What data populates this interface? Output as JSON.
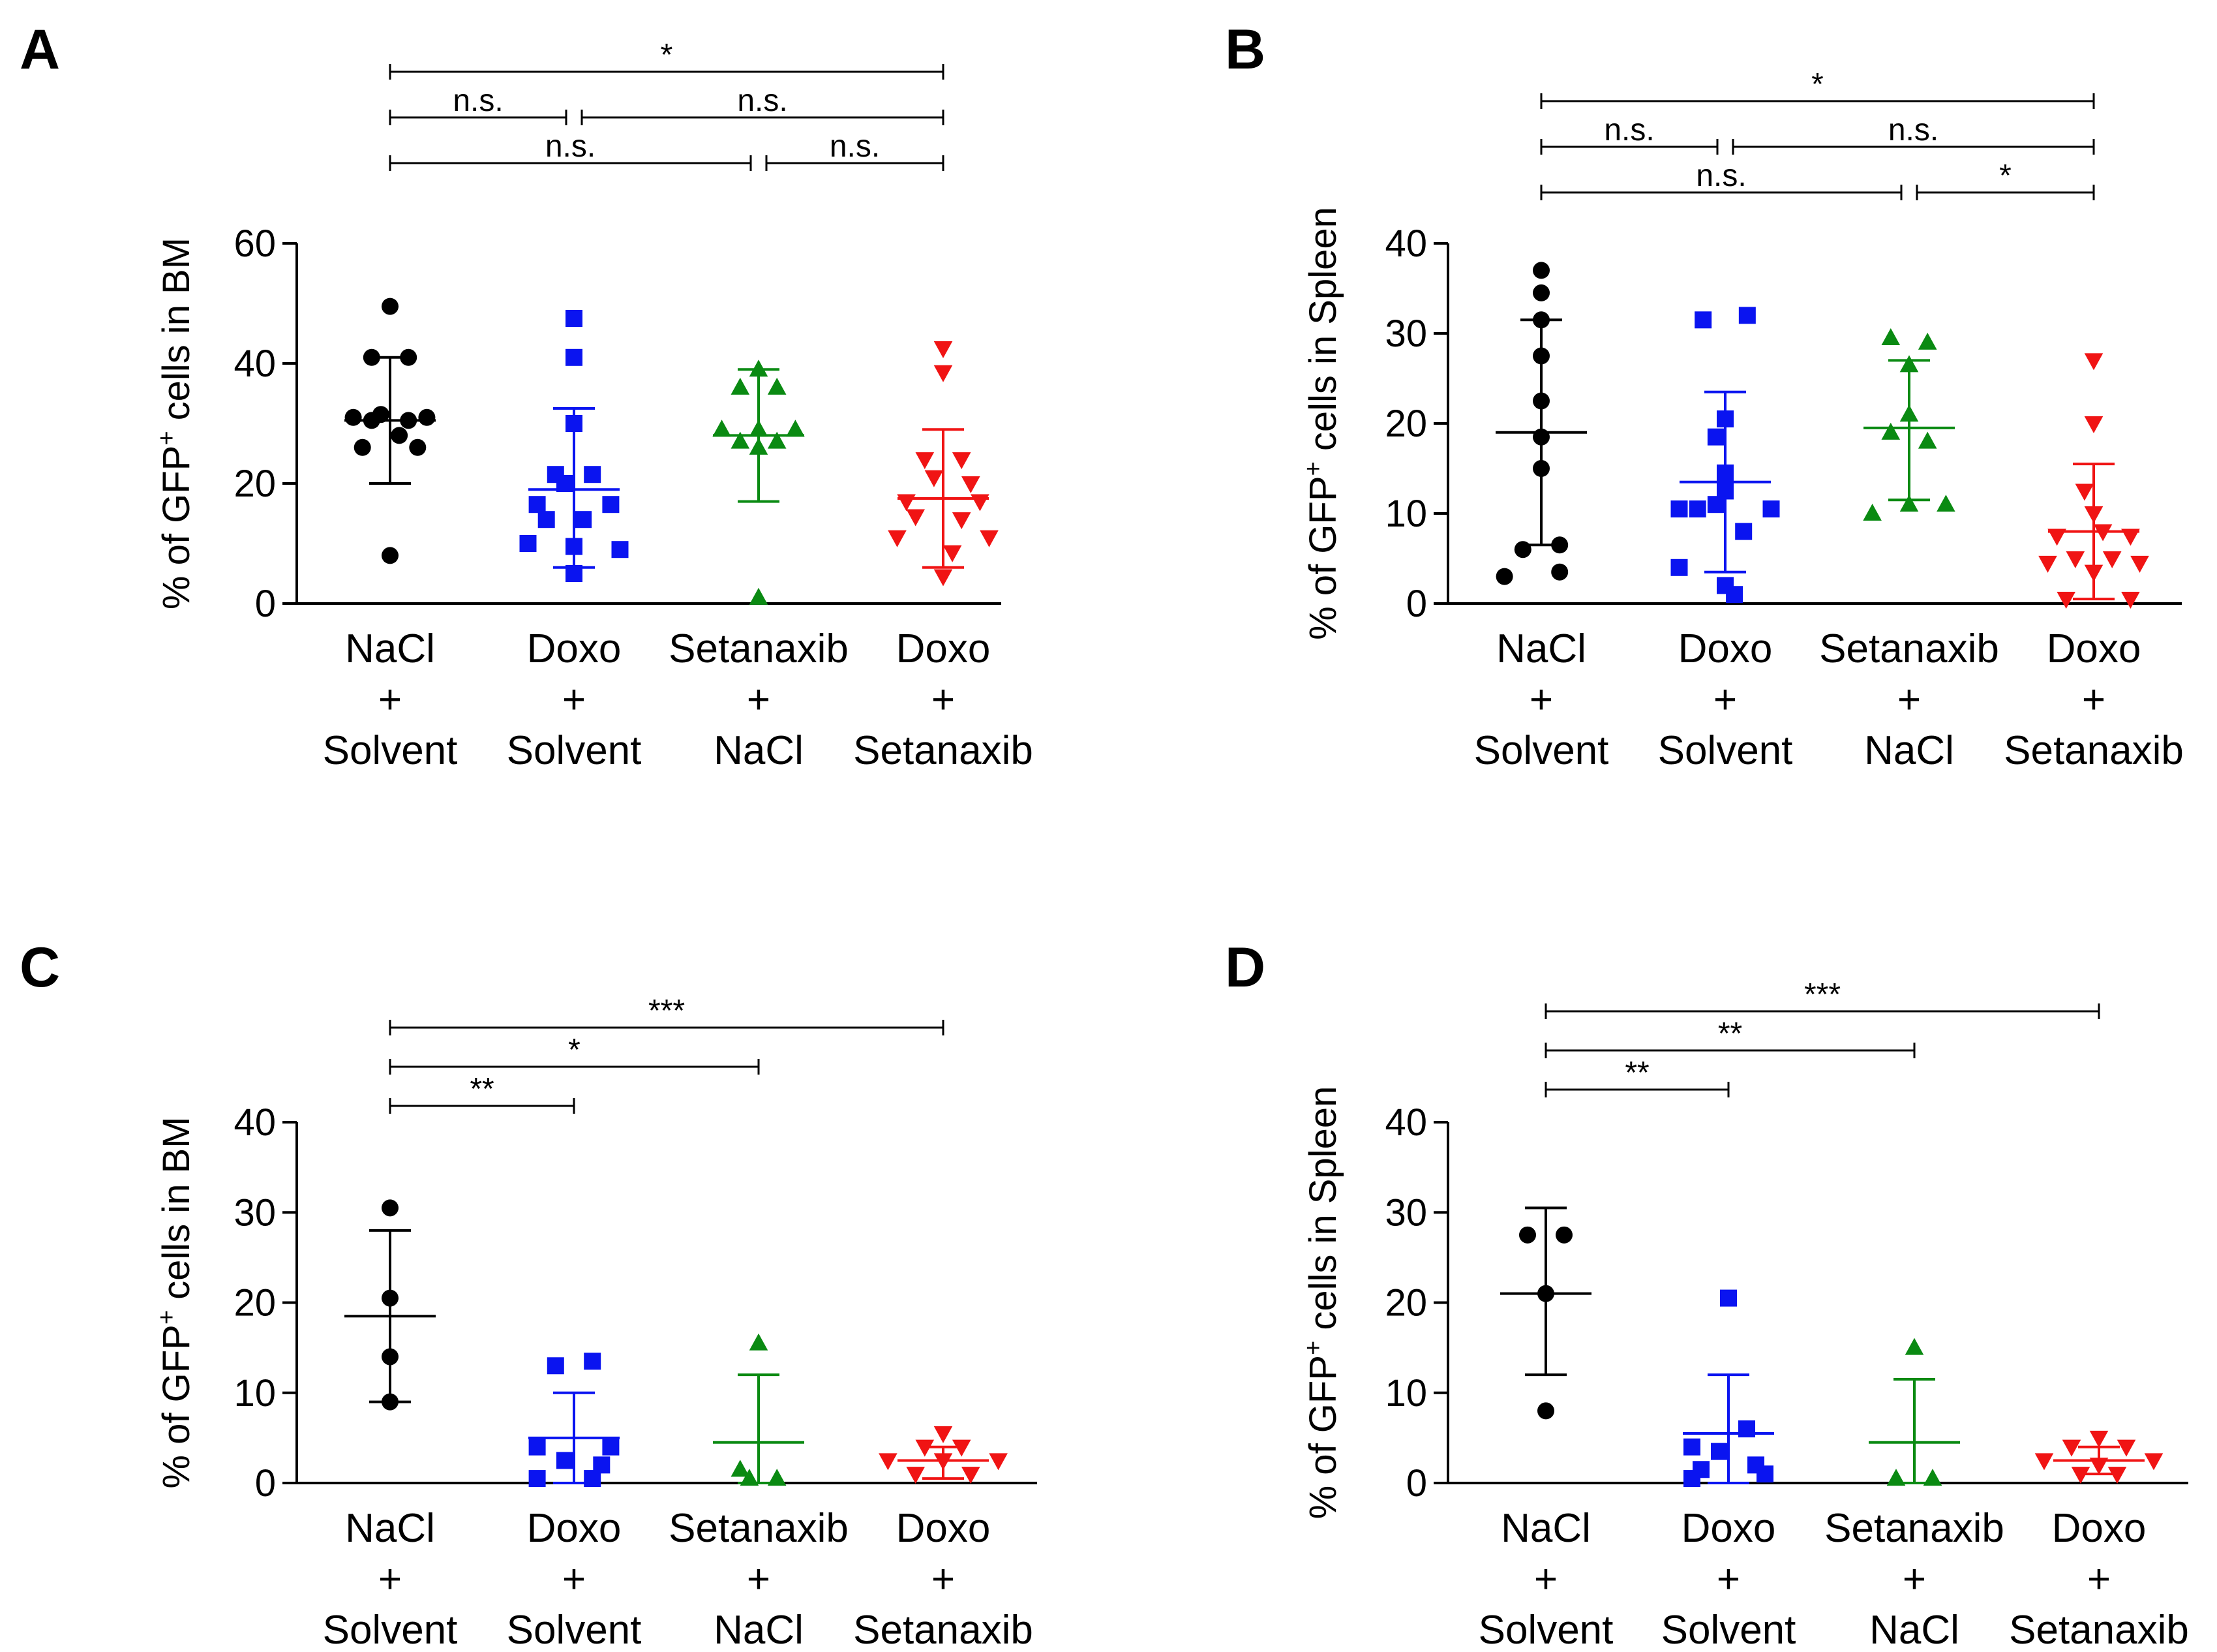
{
  "colors": {
    "NaCl + Solvent": "#000000",
    "Doxo + Solvent": "#0a14f0",
    "Setanaxib + NaCl": "#0a8a12",
    "Doxo + Setanaxib": "#f01414"
  },
  "chart_data": [
    {
      "panel": "A",
      "type": "scatter",
      "ylabel_parts": [
        "% of GFP",
        "+",
        " cells in BM"
      ],
      "ylim": [
        0,
        60
      ],
      "yticks": [
        0,
        20,
        40,
        60
      ],
      "categories": [
        {
          "line1": "NaCl",
          "line2": "+",
          "line3": "Solvent"
        },
        {
          "line1": "Doxo",
          "line2": "+",
          "line3": "Solvent"
        },
        {
          "line1": "Setanaxib",
          "line2": "+",
          "line3": "NaCl"
        },
        {
          "line1": "Doxo",
          "line2": "+",
          "line3": "Setanaxib"
        }
      ],
      "series": [
        {
          "name": "NaCl + Solvent",
          "marker": "circle",
          "mean": 30.5,
          "sd_low": 20,
          "sd_high": 41,
          "points": [
            [
              0,
              49.5
            ],
            [
              -0.1,
              30.5
            ],
            [
              0.1,
              30.5
            ],
            [
              -0.2,
              31
            ],
            [
              0.2,
              31
            ],
            [
              -0.05,
              31.5
            ],
            [
              0.05,
              28
            ],
            [
              -0.15,
              26
            ],
            [
              0.15,
              26
            ],
            [
              -0.1,
              41
            ],
            [
              0.1,
              41
            ],
            [
              0,
              8
            ]
          ]
        },
        {
          "name": "Doxo + Solvent",
          "marker": "square",
          "mean": 19,
          "sd_low": 6,
          "sd_high": 32.5,
          "points": [
            [
              0,
              47.5
            ],
            [
              0,
              41
            ],
            [
              0,
              30
            ],
            [
              -0.1,
              21.5
            ],
            [
              0.1,
              21.5
            ],
            [
              -0.05,
              20
            ],
            [
              -0.2,
              16.5
            ],
            [
              0.2,
              16.5
            ],
            [
              -0.15,
              14
            ],
            [
              0.05,
              14
            ],
            [
              -0.25,
              10
            ],
            [
              0,
              9.5
            ],
            [
              0.25,
              9
            ],
            [
              0,
              5
            ]
          ]
        },
        {
          "name": "Setanaxib + NaCl",
          "marker": "triangle-up",
          "mean": 28,
          "sd_low": 17,
          "sd_high": 39,
          "points": [
            [
              0,
              39
            ],
            [
              -0.1,
              36
            ],
            [
              0.1,
              36
            ],
            [
              -0.2,
              29
            ],
            [
              0,
              29
            ],
            [
              0.2,
              29
            ],
            [
              -0.1,
              27
            ],
            [
              0.1,
              27
            ],
            [
              0,
              26
            ],
            [
              0,
              1
            ]
          ]
        },
        {
          "name": "Doxo + Setanaxib",
          "marker": "triangle-down",
          "mean": 17.5,
          "sd_low": 6,
          "sd_high": 29,
          "points": [
            [
              0,
              42.5
            ],
            [
              0,
              38.5
            ],
            [
              -0.1,
              24
            ],
            [
              0.1,
              24
            ],
            [
              -0.05,
              21
            ],
            [
              0.15,
              20
            ],
            [
              -0.2,
              17
            ],
            [
              0.2,
              17
            ],
            [
              -0.15,
              14.5
            ],
            [
              0.1,
              14
            ],
            [
              -0.25,
              11
            ],
            [
              0.25,
              11
            ],
            [
              0.05,
              8.5
            ],
            [
              0,
              4.5
            ]
          ]
        }
      ],
      "comparisons": [
        {
          "from": 0,
          "to": 3,
          "level": 4,
          "label": "*"
        },
        {
          "from": 0,
          "to": 1,
          "level": 3,
          "label": "n.s."
        },
        {
          "from": 1,
          "to": 3,
          "level": 3,
          "label": "n.s."
        },
        {
          "from": 0,
          "to": 2,
          "level": 2,
          "label": "n.s."
        },
        {
          "from": 2,
          "to": 3,
          "level": 2,
          "label": "n.s."
        }
      ]
    },
    {
      "panel": "B",
      "type": "scatter",
      "ylabel_parts": [
        "% of GFP",
        "+",
        " cells in Spleen"
      ],
      "ylim": [
        0,
        40
      ],
      "yticks": [
        0,
        10,
        20,
        30,
        40
      ],
      "categories": [
        {
          "line1": "NaCl",
          "line2": "+",
          "line3": "Solvent"
        },
        {
          "line1": "Doxo",
          "line2": "+",
          "line3": "Solvent"
        },
        {
          "line1": "Setanaxib",
          "line2": "+",
          "line3": "NaCl"
        },
        {
          "line1": "Doxo",
          "line2": "+",
          "line3": "Setanaxib"
        }
      ],
      "series": [
        {
          "name": "NaCl + Solvent",
          "marker": "circle",
          "mean": 19,
          "sd_low": 6.5,
          "sd_high": 31.5,
          "points": [
            [
              0,
              37
            ],
            [
              0,
              34.5
            ],
            [
              0,
              31.5
            ],
            [
              0,
              27.5
            ],
            [
              0,
              22.5
            ],
            [
              0,
              18.5
            ],
            [
              0,
              15
            ],
            [
              -0.1,
              6
            ],
            [
              0.1,
              6.5
            ],
            [
              -0.2,
              3
            ],
            [
              0.1,
              3.5
            ]
          ]
        },
        {
          "name": "Doxo + Solvent",
          "marker": "square",
          "mean": 13.5,
          "sd_low": 3.5,
          "sd_high": 23.5,
          "points": [
            [
              -0.12,
              31.5
            ],
            [
              0.12,
              32
            ],
            [
              0,
              20.5
            ],
            [
              -0.05,
              18.5
            ],
            [
              0,
              14.5
            ],
            [
              0,
              12.5
            ],
            [
              -0.05,
              11
            ],
            [
              -0.25,
              10.5
            ],
            [
              -0.15,
              10.5
            ],
            [
              0.25,
              10.5
            ],
            [
              0.1,
              8
            ],
            [
              -0.25,
              4
            ],
            [
              0,
              2
            ],
            [
              0.05,
              1
            ]
          ]
        },
        {
          "name": "Setanaxib + NaCl",
          "marker": "triangle-up",
          "mean": 19.5,
          "sd_low": 11.5,
          "sd_high": 27,
          "points": [
            [
              -0.1,
              29.5
            ],
            [
              0.1,
              29
            ],
            [
              0,
              26.5
            ],
            [
              0,
              21
            ],
            [
              -0.1,
              19
            ],
            [
              0.1,
              18
            ],
            [
              -0.2,
              10
            ],
            [
              0,
              11
            ],
            [
              0.2,
              11
            ]
          ]
        },
        {
          "name": "Doxo + Setanaxib",
          "marker": "triangle-down",
          "mean": 8,
          "sd_low": 0.5,
          "sd_high": 15.5,
          "points": [
            [
              0,
              27
            ],
            [
              0,
              20
            ],
            [
              -0.05,
              12.5
            ],
            [
              0,
              10
            ],
            [
              0.05,
              8
            ],
            [
              -0.2,
              7.5
            ],
            [
              0.2,
              7.5
            ],
            [
              -0.1,
              5
            ],
            [
              0.1,
              5
            ],
            [
              -0.25,
              4.5
            ],
            [
              0.25,
              4.5
            ],
            [
              0,
              3.5
            ],
            [
              -0.15,
              0.5
            ],
            [
              0.2,
              0.5
            ]
          ]
        }
      ],
      "comparisons": [
        {
          "from": 0,
          "to": 3,
          "level": 4,
          "label": "*"
        },
        {
          "from": 0,
          "to": 1,
          "level": 3,
          "label": "n.s."
        },
        {
          "from": 1,
          "to": 3,
          "level": 3,
          "label": "n.s."
        },
        {
          "from": 0,
          "to": 2,
          "level": 2,
          "label": "n.s."
        },
        {
          "from": 2,
          "to": 3,
          "level": 2,
          "label": "*"
        }
      ]
    },
    {
      "panel": "C",
      "type": "scatter",
      "ylabel_parts": [
        "% of GFP",
        "+",
        " cells in BM"
      ],
      "ylim": [
        0,
        40
      ],
      "yticks": [
        0,
        10,
        20,
        30,
        40
      ],
      "categories": [
        {
          "line1": "NaCl",
          "line2": "+",
          "line3": "Solvent"
        },
        {
          "line1": "Doxo",
          "line2": "+",
          "line3": "Solvent"
        },
        {
          "line1": "Setanaxib",
          "line2": "+",
          "line3": "NaCl"
        },
        {
          "line1": "Doxo",
          "line2": "+",
          "line3": "Setanaxib"
        }
      ],
      "series": [
        {
          "name": "NaCl + Solvent",
          "marker": "circle",
          "mean": 18.5,
          "sd_low": 9,
          "sd_high": 28,
          "points": [
            [
              0,
              30.5
            ],
            [
              0,
              20.5
            ],
            [
              0,
              14
            ],
            [
              0,
              9
            ]
          ]
        },
        {
          "name": "Doxo + Solvent",
          "marker": "square",
          "mean": 5,
          "sd_low": 0,
          "sd_high": 10,
          "points": [
            [
              -0.1,
              13
            ],
            [
              0.1,
              13.5
            ],
            [
              -0.2,
              4
            ],
            [
              0.2,
              4
            ],
            [
              -0.05,
              2.5
            ],
            [
              0.15,
              2
            ],
            [
              -0.2,
              0.5
            ],
            [
              0.1,
              0.5
            ]
          ]
        },
        {
          "name": "Setanaxib + NaCl",
          "marker": "triangle-up",
          "mean": 4.5,
          "sd_low": 0,
          "sd_high": 12,
          "points": [
            [
              0,
              15.5
            ],
            [
              -0.1,
              1.5
            ],
            [
              -0.05,
              0.5
            ],
            [
              0.1,
              0.5
            ]
          ]
        },
        {
          "name": "Doxo + Setanaxib",
          "marker": "triangle-down",
          "mean": 2.5,
          "sd_low": 0.5,
          "sd_high": 4,
          "points": [
            [
              0,
              5.5
            ],
            [
              -0.1,
              4
            ],
            [
              0.1,
              4
            ],
            [
              -0.3,
              2.5
            ],
            [
              0,
              2.5
            ],
            [
              0.3,
              2.5
            ],
            [
              -0.15,
              1
            ],
            [
              0.15,
              1
            ]
          ]
        }
      ],
      "comparisons": [
        {
          "from": 0,
          "to": 3,
          "level": 3,
          "label": "***"
        },
        {
          "from": 0,
          "to": 2,
          "level": 2,
          "label": "*"
        },
        {
          "from": 0,
          "to": 1,
          "level": 1,
          "label": "**"
        }
      ]
    },
    {
      "panel": "D",
      "type": "scatter",
      "ylabel_parts": [
        "% of GFP",
        "+",
        " cells in Spleen"
      ],
      "ylim": [
        0,
        40
      ],
      "yticks": [
        0,
        10,
        20,
        30,
        40
      ],
      "categories": [
        {
          "line1": "NaCl",
          "line2": "+",
          "line3": "Solvent"
        },
        {
          "line1": "Doxo",
          "line2": "+",
          "line3": "Solvent"
        },
        {
          "line1": "Setanaxib",
          "line2": "+",
          "line3": "NaCl"
        },
        {
          "line1": "Doxo",
          "line2": "+",
          "line3": "Setanaxib"
        }
      ],
      "series": [
        {
          "name": "NaCl + Solvent",
          "marker": "circle",
          "mean": 21,
          "sd_low": 12,
          "sd_high": 30.5,
          "points": [
            [
              -0.1,
              27.5
            ],
            [
              0.1,
              27.5
            ],
            [
              0,
              21
            ],
            [
              0,
              8
            ]
          ]
        },
        {
          "name": "Doxo + Solvent",
          "marker": "square",
          "mean": 5.5,
          "sd_low": 0,
          "sd_high": 12,
          "points": [
            [
              0,
              20.5
            ],
            [
              0.1,
              6
            ],
            [
              -0.2,
              4
            ],
            [
              -0.05,
              3.5
            ],
            [
              0.15,
              2
            ],
            [
              -0.15,
              1.5
            ],
            [
              0.2,
              1
            ],
            [
              -0.2,
              0.5
            ]
          ]
        },
        {
          "name": "Setanaxib + NaCl",
          "marker": "triangle-up",
          "mean": 4.5,
          "sd_low": 0,
          "sd_high": 11.5,
          "points": [
            [
              0,
              15
            ],
            [
              -0.1,
              0.5
            ],
            [
              0.1,
              0.5
            ]
          ]
        },
        {
          "name": "Doxo + Setanaxib",
          "marker": "triangle-down",
          "mean": 2.5,
          "sd_low": 1,
          "sd_high": 4,
          "points": [
            [
              0,
              5
            ],
            [
              -0.15,
              4
            ],
            [
              0.15,
              4
            ],
            [
              -0.3,
              2.5
            ],
            [
              0.3,
              2.5
            ],
            [
              0,
              2
            ],
            [
              -0.1,
              1
            ],
            [
              0.1,
              1
            ]
          ]
        }
      ],
      "comparisons": [
        {
          "from": 0,
          "to": 3,
          "level": 3,
          "label": "***"
        },
        {
          "from": 0,
          "to": 2,
          "level": 2,
          "label": "**"
        },
        {
          "from": 0,
          "to": 1,
          "level": 1,
          "label": "**"
        }
      ]
    }
  ]
}
